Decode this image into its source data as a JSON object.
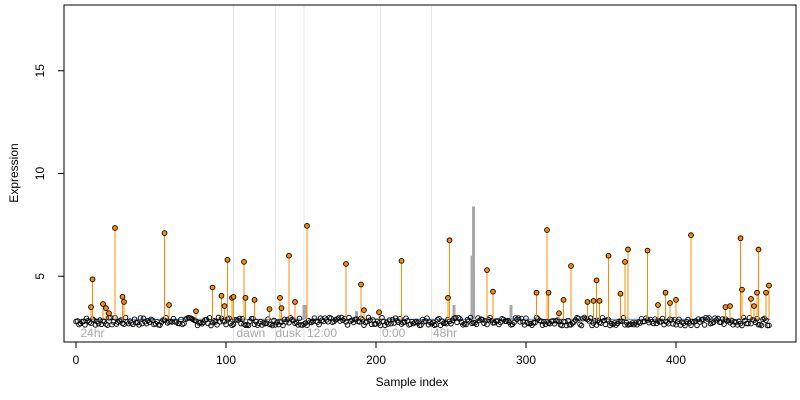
{
  "chart_data": {
    "type": "scatter",
    "xlabel": "Sample index",
    "ylabel": "Expression",
    "xlim": [
      -8,
      480
    ],
    "ylim": [
      1.8,
      18.2
    ],
    "x_ticks": [
      0,
      100,
      200,
      300,
      400
    ],
    "y_ticks": [
      5,
      10,
      15
    ],
    "baseline": 2.9,
    "colors": {
      "highlight_stem": "#ff8c00",
      "gray_bar": "#a8a8a8",
      "blue_line": "#6a9fdc",
      "divider": "#e6e6e6",
      "point_edge": "#000000"
    },
    "group_labels": [
      {
        "x": 3,
        "label": "24hr"
      },
      {
        "x": 107,
        "label": "dawn"
      },
      {
        "x": 133,
        "label": "dusk"
      },
      {
        "x": 154,
        "label": "12:00"
      },
      {
        "x": 204,
        "label": "0:00"
      },
      {
        "x": 238,
        "label": "48hr"
      }
    ],
    "dividers": [
      105,
      133,
      152,
      203,
      237
    ],
    "gray_bars": [
      {
        "x": 152,
        "y": 3.6
      },
      {
        "x": 153,
        "y": 3.6
      },
      {
        "x": 187,
        "y": 3.3
      },
      {
        "x": 252,
        "y": 3.6
      },
      {
        "x": 264,
        "y": 6.0
      },
      {
        "x": 265,
        "y": 8.4
      },
      {
        "x": 290,
        "y": 3.6
      }
    ],
    "highlighted": [
      {
        "x": 11,
        "y": 4.85
      },
      {
        "x": 10,
        "y": 3.5
      },
      {
        "x": 18,
        "y": 3.65
      },
      {
        "x": 20,
        "y": 3.45
      },
      {
        "x": 22,
        "y": 3.2
      },
      {
        "x": 26,
        "y": 7.35
      },
      {
        "x": 31,
        "y": 4.0
      },
      {
        "x": 32,
        "y": 3.75
      },
      {
        "x": 59,
        "y": 7.1
      },
      {
        "x": 62,
        "y": 3.6
      },
      {
        "x": 80,
        "y": 3.3
      },
      {
        "x": 91,
        "y": 4.45
      },
      {
        "x": 97,
        "y": 4.05
      },
      {
        "x": 99,
        "y": 3.55
      },
      {
        "x": 101,
        "y": 5.8
      },
      {
        "x": 104,
        "y": 3.95
      },
      {
        "x": 105,
        "y": 4.0
      },
      {
        "x": 112,
        "y": 5.7
      },
      {
        "x": 113,
        "y": 3.95
      },
      {
        "x": 119,
        "y": 3.85
      },
      {
        "x": 129,
        "y": 3.4
      },
      {
        "x": 136,
        "y": 3.95
      },
      {
        "x": 137,
        "y": 3.45
      },
      {
        "x": 142,
        "y": 6.0
      },
      {
        "x": 146,
        "y": 3.75
      },
      {
        "x": 154,
        "y": 7.45
      },
      {
        "x": 180,
        "y": 5.6
      },
      {
        "x": 190,
        "y": 4.6
      },
      {
        "x": 192,
        "y": 3.35
      },
      {
        "x": 202,
        "y": 3.25
      },
      {
        "x": 217,
        "y": 5.75
      },
      {
        "x": 248,
        "y": 3.95
      },
      {
        "x": 249,
        "y": 6.75
      },
      {
        "x": 274,
        "y": 5.3
      },
      {
        "x": 278,
        "y": 4.25
      },
      {
        "x": 307,
        "y": 4.2
      },
      {
        "x": 314,
        "y": 7.25
      },
      {
        "x": 315,
        "y": 4.2
      },
      {
        "x": 322,
        "y": 3.2
      },
      {
        "x": 325,
        "y": 3.85
      },
      {
        "x": 330,
        "y": 5.5
      },
      {
        "x": 341,
        "y": 3.75
      },
      {
        "x": 345,
        "y": 3.8
      },
      {
        "x": 347,
        "y": 4.8
      },
      {
        "x": 349,
        "y": 3.8
      },
      {
        "x": 355,
        "y": 6.0
      },
      {
        "x": 363,
        "y": 4.15
      },
      {
        "x": 366,
        "y": 5.7
      },
      {
        "x": 368,
        "y": 6.3
      },
      {
        "x": 381,
        "y": 6.25
      },
      {
        "x": 388,
        "y": 3.6
      },
      {
        "x": 393,
        "y": 4.2
      },
      {
        "x": 396,
        "y": 3.7
      },
      {
        "x": 400,
        "y": 3.85
      },
      {
        "x": 410,
        "y": 7.0
      },
      {
        "x": 433,
        "y": 3.5
      },
      {
        "x": 436,
        "y": 3.55
      },
      {
        "x": 443,
        "y": 6.85
      },
      {
        "x": 444,
        "y": 4.35
      },
      {
        "x": 450,
        "y": 3.9
      },
      {
        "x": 452,
        "y": 3.55
      },
      {
        "x": 454,
        "y": 4.2
      },
      {
        "x": 455,
        "y": 6.3
      },
      {
        "x": 460,
        "y": 4.2
      },
      {
        "x": 462,
        "y": 4.55
      }
    ],
    "background_points": {
      "n": 463,
      "base_y": 2.8,
      "jitter": 0.2
    }
  }
}
